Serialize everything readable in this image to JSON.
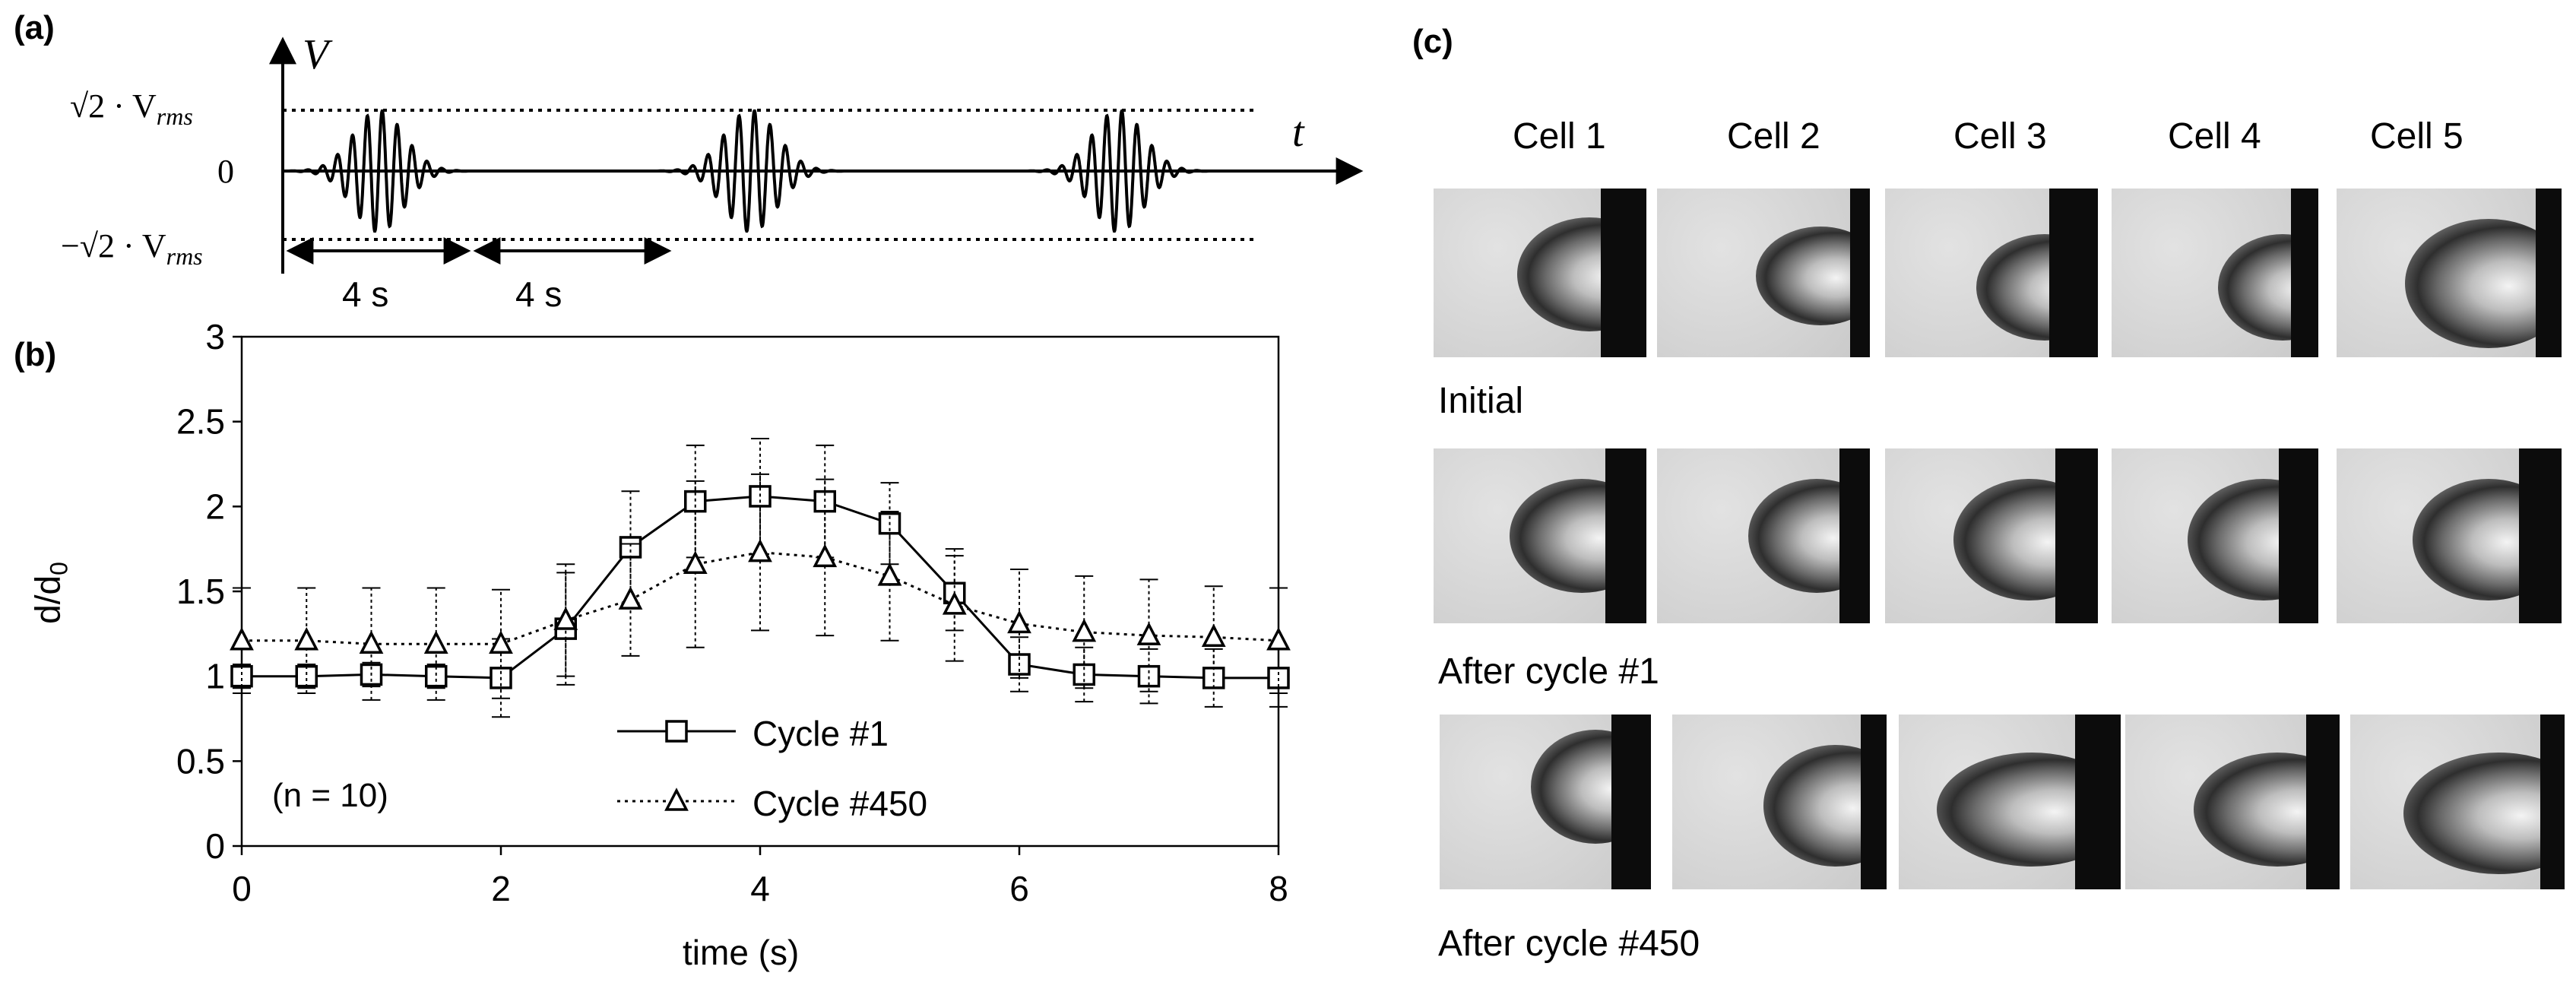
{
  "panel_labels": {
    "a": "(a)",
    "b": "(b)",
    "c": "(c)"
  },
  "panel_a": {
    "y_axis_label": "V",
    "x_axis_label": "t",
    "level_top": "√2 · V",
    "level_top_sub": "rms",
    "level_zero": "0",
    "level_bottom": "−√2 · V",
    "level_bottom_sub": "rms",
    "interval_1": "4 s",
    "interval_2": "4 s"
  },
  "chart_data": {
    "type": "line",
    "ylabel": "d/d",
    "ylabel_sub": "0",
    "xlabel": "time (s)",
    "xlim": [
      0,
      8
    ],
    "ylim": [
      0,
      3
    ],
    "x_ticks": [
      "0",
      "2",
      "4",
      "6",
      "8"
    ],
    "y_ticks": [
      "0",
      "0.5",
      "1",
      "1.5",
      "2",
      "2.5",
      "3"
    ],
    "annotation": "(n = 10)",
    "legend_position": "bottom-center",
    "x": [
      0,
      0.5,
      1,
      1.5,
      2,
      2.5,
      3,
      3.5,
      4,
      4.5,
      5,
      5.5,
      6,
      6.5,
      7,
      7.5,
      8
    ],
    "series": [
      {
        "name": "Cycle #1",
        "marker": "square",
        "line": "solid",
        "values": [
          1.0,
          1.0,
          1.01,
          1.0,
          0.99,
          1.28,
          1.76,
          2.03,
          2.06,
          2.03,
          1.9,
          1.49,
          1.07,
          1.01,
          1.0,
          0.99,
          0.99
        ],
        "error": [
          0.07,
          0.07,
          0.07,
          0.07,
          0.23,
          0.33,
          0.33,
          0.33,
          0.34,
          0.33,
          0.24,
          0.22,
          0.16,
          0.16,
          0.16,
          0.17,
          0.17
        ]
      },
      {
        "name": "Cycle #450",
        "marker": "triangle",
        "line": "dotted",
        "values": [
          1.21,
          1.21,
          1.19,
          1.19,
          1.19,
          1.33,
          1.45,
          1.66,
          1.73,
          1.7,
          1.59,
          1.42,
          1.31,
          1.26,
          1.24,
          1.23,
          1.21
        ],
        "error": [
          0.31,
          0.31,
          0.33,
          0.33,
          0.32,
          0.33,
          0.33,
          0.49,
          0.46,
          0.46,
          0.38,
          0.33,
          0.32,
          0.33,
          0.33,
          0.3,
          0.31
        ]
      }
    ]
  },
  "panel_c": {
    "columns": [
      "Cell 1",
      "Cell 2",
      "Cell 3",
      "Cell 4",
      "Cell 5"
    ],
    "rows": [
      {
        "label": "Initial"
      },
      {
        "label": "After cycle #1"
      },
      {
        "label": "After cycle #450"
      }
    ]
  }
}
